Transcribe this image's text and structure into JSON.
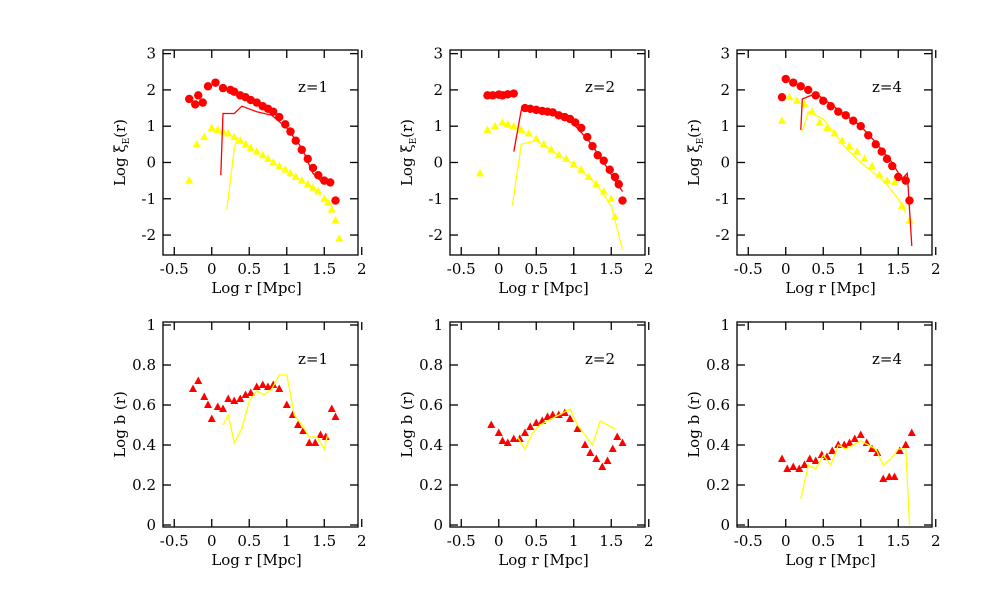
{
  "chart_data": [
    {
      "type": "scatter",
      "annotation": "z=1",
      "xlabel": "Log r [Mpc]",
      "ylabel": "Log ξ",
      "ylabel_sub": "E",
      "ylabel_end": "(r)",
      "xlim": [
        -0.65,
        1.95
      ],
      "ylim": [
        -2.55,
        3.1
      ],
      "xticks": [
        -0.5,
        0,
        0.5,
        1,
        1.5,
        2
      ],
      "yticks": [
        -2,
        -1,
        0,
        1,
        2,
        3
      ],
      "series": [
        {
          "marker": "circle",
          "color": "#ff0000",
          "x": [
            -0.3,
            -0.22,
            -0.18,
            -0.12,
            -0.05,
            0.05,
            0.15,
            0.25,
            0.3,
            0.38,
            0.45,
            0.52,
            0.6,
            0.68,
            0.75,
            0.82,
            0.9,
            0.98,
            1.05,
            1.12,
            1.2,
            1.28,
            1.35,
            1.42,
            1.5,
            1.58,
            1.65
          ],
          "values": [
            1.75,
            1.6,
            1.85,
            1.65,
            2.1,
            2.2,
            2.05,
            2.0,
            1.95,
            1.85,
            1.8,
            1.72,
            1.65,
            1.55,
            1.48,
            1.4,
            1.25,
            1.05,
            0.85,
            0.6,
            0.35,
            0.1,
            -0.15,
            -0.35,
            -0.5,
            -0.55,
            -1.05
          ]
        },
        {
          "marker": "triangle",
          "color": "#ffff00",
          "x": [
            -0.3,
            -0.2,
            -0.1,
            0,
            0.08,
            0.15,
            0.22,
            0.3,
            0.38,
            0.45,
            0.52,
            0.6,
            0.68,
            0.75,
            0.82,
            0.9,
            0.98,
            1.05,
            1.12,
            1.2,
            1.28,
            1.35,
            1.42,
            1.5,
            1.55,
            1.6,
            1.65,
            1.7
          ],
          "values": [
            -0.5,
            0.5,
            0.7,
            0.95,
            0.9,
            0.85,
            0.8,
            0.7,
            0.6,
            0.5,
            0.4,
            0.3,
            0.2,
            0.1,
            0,
            -0.1,
            -0.2,
            -0.3,
            -0.4,
            -0.5,
            -0.6,
            -0.7,
            -0.8,
            -1.0,
            -1.1,
            -1.3,
            -1.6,
            -2.1
          ]
        },
        {
          "marker": "line",
          "color": "#ff0000",
          "x": [
            0.12,
            0.15,
            0.3,
            0.4,
            0.6,
            0.8,
            1.0,
            1.2,
            1.35,
            1.45,
            1.55
          ],
          "values": [
            -0.35,
            1.35,
            1.35,
            1.55,
            1.4,
            1.3,
            0.95,
            0.4,
            -0.3,
            -0.5,
            -0.55
          ]
        },
        {
          "marker": "line",
          "color": "#ffff00",
          "x": [
            0.2,
            0.3,
            0.35
          ],
          "values": [
            -1.3,
            0.4,
            0.7
          ]
        }
      ]
    },
    {
      "type": "scatter",
      "annotation": "z=2",
      "xlabel": "Log r [Mpc]",
      "ylabel": "Log ξ",
      "ylabel_sub": "E",
      "ylabel_end": "(r)",
      "xlim": [
        -0.65,
        1.95
      ],
      "ylim": [
        -2.55,
        3.1
      ],
      "xticks": [
        -0.5,
        0,
        0.5,
        1,
        1.5,
        2
      ],
      "yticks": [
        -2,
        -1,
        0,
        1,
        2,
        3
      ],
      "series": [
        {
          "marker": "circle",
          "color": "#ff0000",
          "x": [
            -0.15,
            -0.08,
            0,
            0.05,
            0.12,
            0.2,
            0.35,
            0.42,
            0.5,
            0.58,
            0.65,
            0.72,
            0.8,
            0.88,
            0.95,
            1.02,
            1.1,
            1.18,
            1.25,
            1.32,
            1.4,
            1.48,
            1.55,
            1.6,
            1.65
          ],
          "values": [
            1.85,
            1.85,
            1.87,
            1.85,
            1.88,
            1.9,
            1.5,
            1.48,
            1.45,
            1.42,
            1.4,
            1.38,
            1.3,
            1.25,
            1.2,
            1.1,
            0.95,
            0.7,
            0.45,
            0.2,
            0.05,
            -0.2,
            -0.4,
            -0.6,
            -1.05
          ]
        },
        {
          "marker": "triangle",
          "color": "#ffff00",
          "x": [
            -0.25,
            -0.15,
            -0.05,
            0.05,
            0.12,
            0.2,
            0.3,
            0.4,
            0.5,
            0.6,
            0.7,
            0.8,
            0.9,
            1.0,
            1.1,
            1.2,
            1.3,
            1.4,
            1.5,
            1.55
          ],
          "values": [
            -0.3,
            0.9,
            1.0,
            1.1,
            1.05,
            1.0,
            0.9,
            0.8,
            0.65,
            0.5,
            0.35,
            0.2,
            0.1,
            -0.05,
            -0.2,
            -0.4,
            -0.6,
            -0.8,
            -1.0,
            -1.5
          ]
        },
        {
          "marker": "line",
          "color": "#ff0000",
          "x": [
            0.2,
            0.3,
            0.5,
            0.7,
            0.9,
            1.0,
            1.2,
            1.4,
            1.55,
            1.65
          ],
          "values": [
            0.3,
            1.45,
            1.5,
            1.45,
            1.3,
            1.05,
            0.6,
            0.0,
            -0.5,
            -0.8
          ]
        },
        {
          "marker": "line",
          "color": "#ffff00",
          "x": [
            0.18,
            0.3,
            0.5,
            0.8,
            1.0,
            1.3,
            1.5,
            1.65
          ],
          "values": [
            -1.2,
            0.5,
            0.6,
            0.2,
            -0.05,
            -0.6,
            -1.2,
            -2.4
          ]
        }
      ]
    },
    {
      "type": "scatter",
      "annotation": "z=4",
      "xlabel": "Log r [Mpc]",
      "ylabel": "Log ξ",
      "ylabel_sub": "E",
      "ylabel_end": "(r)",
      "xlim": [
        -0.65,
        1.95
      ],
      "ylim": [
        -2.55,
        3.1
      ],
      "xticks": [
        -0.5,
        0,
        0.5,
        1,
        1.5,
        2
      ],
      "yticks": [
        -2,
        -1,
        0,
        1,
        2,
        3
      ],
      "series": [
        {
          "marker": "circle",
          "color": "#ff0000",
          "x": [
            -0.05,
            0,
            0.1,
            0.2,
            0.3,
            0.4,
            0.5,
            0.6,
            0.7,
            0.8,
            0.9,
            1.0,
            1.1,
            1.2,
            1.28,
            1.35,
            1.42,
            1.5,
            1.6,
            1.65
          ],
          "values": [
            1.8,
            2.3,
            2.2,
            2.1,
            2.0,
            1.85,
            1.7,
            1.55,
            1.4,
            1.3,
            1.15,
            1.0,
            0.75,
            0.5,
            0.3,
            0.1,
            -0.1,
            -0.4,
            -0.5,
            -1.05
          ]
        },
        {
          "marker": "triangle",
          "color": "#ffff00",
          "x": [
            -0.05,
            0.05,
            0.15,
            0.25,
            0.35,
            0.45,
            0.55,
            0.65,
            0.75,
            0.85,
            0.95,
            1.05,
            1.15,
            1.25,
            1.35,
            1.45,
            1.55,
            1.65
          ],
          "values": [
            1.15,
            1.8,
            1.7,
            1.6,
            1.4,
            1.1,
            0.95,
            0.8,
            0.6,
            0.45,
            0.3,
            0.1,
            -0.1,
            -0.35,
            -0.5,
            -0.55,
            -1.2,
            -1.6
          ]
        },
        {
          "marker": "line",
          "color": "#ff0000",
          "x": [
            0.2,
            0.22,
            0.4,
            0.6,
            0.8,
            1.0,
            1.2,
            1.4,
            1.55,
            1.62,
            1.68
          ],
          "values": [
            0.9,
            1.75,
            1.9,
            1.6,
            1.3,
            1.0,
            0.55,
            0.05,
            -0.45,
            -0.3,
            -2.3
          ]
        },
        {
          "marker": "line",
          "color": "#ffff00",
          "x": [
            0.22,
            0.3,
            0.5,
            0.8,
            1.0,
            1.3,
            1.5,
            1.6
          ],
          "values": [
            0.85,
            1.4,
            1.2,
            0.4,
            0.0,
            -0.5,
            -1.0,
            -1.4
          ]
        }
      ]
    },
    {
      "type": "scatter",
      "annotation": "z=1",
      "xlabel": "Log r [Mpc]",
      "ylabel": "Log b (r)",
      "xlim": [
        -0.65,
        1.95
      ],
      "ylim": [
        -0.01,
        1.015
      ],
      "xticks": [
        -0.5,
        0,
        0.5,
        1,
        1.5,
        2
      ],
      "yticks": [
        0,
        0.2,
        0.4,
        0.6,
        0.8,
        1
      ],
      "series": [
        {
          "marker": "triangle",
          "color": "#ff0000",
          "x": [
            -0.25,
            -0.18,
            -0.1,
            -0.05,
            0,
            0.08,
            0.15,
            0.22,
            0.3,
            0.38,
            0.45,
            0.52,
            0.6,
            0.68,
            0.75,
            0.82,
            0.9,
            1.0,
            1.08,
            1.15,
            1.22,
            1.3,
            1.38,
            1.45,
            1.52,
            1.6,
            1.65
          ],
          "values": [
            0.68,
            0.72,
            0.64,
            0.6,
            0.53,
            0.59,
            0.58,
            0.63,
            0.62,
            0.63,
            0.65,
            0.66,
            0.69,
            0.7,
            0.69,
            0.7,
            0.68,
            0.6,
            0.55,
            0.5,
            0.47,
            0.41,
            0.41,
            0.45,
            0.44,
            0.58,
            0.54
          ]
        },
        {
          "marker": "line",
          "color": "#ffff00",
          "x": [
            0.15,
            0.22,
            0.3,
            0.4,
            0.5,
            0.6,
            0.7,
            0.8,
            0.9,
            1.0,
            1.1,
            1.2,
            1.3,
            1.4,
            1.5,
            1.55
          ],
          "values": [
            0.5,
            0.55,
            0.41,
            0.48,
            0.62,
            0.67,
            0.65,
            0.68,
            0.75,
            0.75,
            0.55,
            0.5,
            0.44,
            0.44,
            0.38,
            0.46
          ]
        }
      ]
    },
    {
      "type": "scatter",
      "annotation": "z=2",
      "xlabel": "Log r [Mpc]",
      "ylabel": "Log b (r)",
      "xlim": [
        -0.65,
        1.95
      ],
      "ylim": [
        -0.01,
        1.015
      ],
      "xticks": [
        -0.5,
        0,
        0.5,
        1,
        1.5,
        2
      ],
      "yticks": [
        0,
        0.2,
        0.4,
        0.6,
        0.8,
        1
      ],
      "series": [
        {
          "marker": "triangle",
          "color": "#ff0000",
          "x": [
            -0.1,
            0,
            0.05,
            0.12,
            0.2,
            0.28,
            0.35,
            0.42,
            0.5,
            0.58,
            0.65,
            0.72,
            0.8,
            0.88,
            0.95,
            1.05,
            1.15,
            1.22,
            1.3,
            1.38,
            1.45,
            1.52,
            1.58,
            1.65
          ],
          "values": [
            0.5,
            0.46,
            0.42,
            0.41,
            0.43,
            0.43,
            0.46,
            0.49,
            0.51,
            0.52,
            0.54,
            0.55,
            0.55,
            0.56,
            0.53,
            0.48,
            0.4,
            0.36,
            0.33,
            0.29,
            0.32,
            0.38,
            0.44,
            0.41
          ]
        },
        {
          "marker": "line",
          "color": "#ffff00",
          "x": [
            0.25,
            0.35,
            0.45,
            0.55,
            0.65,
            0.75,
            0.85,
            0.95,
            1.05,
            1.15,
            1.25,
            1.35,
            1.45,
            1.55
          ],
          "values": [
            0.44,
            0.38,
            0.46,
            0.5,
            0.52,
            0.54,
            0.56,
            0.58,
            0.5,
            0.45,
            0.4,
            0.52,
            0.5,
            0.48
          ]
        }
      ]
    },
    {
      "type": "scatter",
      "annotation": "z=4",
      "xlabel": "Log r [Mpc]",
      "ylabel": "Log b (r)",
      "xlim": [
        -0.65,
        1.95
      ],
      "ylim": [
        -0.01,
        1.015
      ],
      "xticks": [
        -0.5,
        0,
        0.5,
        1,
        1.5,
        2
      ],
      "yticks": [
        0,
        0.2,
        0.4,
        0.6,
        0.8,
        1
      ],
      "series": [
        {
          "marker": "triangle",
          "color": "#ff0000",
          "x": [
            -0.05,
            0.02,
            0.1,
            0.18,
            0.25,
            0.32,
            0.4,
            0.48,
            0.55,
            0.62,
            0.7,
            0.78,
            0.85,
            0.92,
            1.0,
            1.08,
            1.15,
            1.22,
            1.3,
            1.38,
            1.45,
            1.52,
            1.6,
            1.68
          ],
          "values": [
            0.33,
            0.28,
            0.29,
            0.28,
            0.3,
            0.33,
            0.32,
            0.35,
            0.34,
            0.37,
            0.4,
            0.4,
            0.41,
            0.43,
            0.45,
            0.41,
            0.38,
            0.36,
            0.23,
            0.24,
            0.24,
            0.37,
            0.4,
            0.46
          ]
        },
        {
          "marker": "line",
          "color": "#ffff00",
          "x": [
            0.2,
            0.3,
            0.4,
            0.5,
            0.6,
            0.7,
            0.8,
            0.9,
            1.0,
            1.1,
            1.2,
            1.3,
            1.4,
            1.5,
            1.6,
            1.65
          ],
          "values": [
            0.13,
            0.3,
            0.28,
            0.35,
            0.3,
            0.4,
            0.38,
            0.4,
            0.42,
            0.4,
            0.38,
            0.3,
            0.33,
            0.38,
            0.38,
            0.0
          ]
        }
      ]
    }
  ]
}
